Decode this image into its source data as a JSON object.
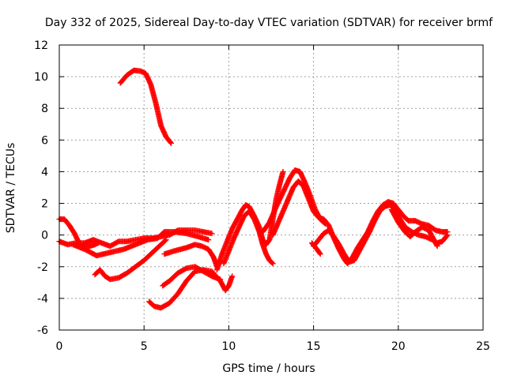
{
  "chart_data": {
    "type": "scatter",
    "title": "Day 332 of 2025, Sidereal Day-to-day VTEC variation (SDTVAR) for receiver brmf",
    "xlabel": "GPS time / hours",
    "ylabel": "SDTVAR / TECUs",
    "xlim": [
      0,
      25
    ],
    "ylim": [
      -6,
      12
    ],
    "xticks": [
      0,
      5,
      10,
      15,
      20,
      25
    ],
    "yticks": [
      -6,
      -4,
      -2,
      0,
      2,
      4,
      6,
      8,
      10,
      12
    ],
    "grid": true,
    "marker": "plus",
    "series_color": "#ff0000",
    "series": [
      {
        "name": "track-1",
        "points": [
          [
            3.6,
            9.6
          ],
          [
            4.0,
            10.1
          ],
          [
            4.4,
            10.4
          ],
          [
            4.8,
            10.35
          ],
          [
            5.1,
            10.2
          ],
          [
            5.4,
            9.5
          ],
          [
            5.7,
            8.3
          ],
          [
            6.0,
            6.9
          ],
          [
            6.3,
            6.2
          ],
          [
            6.6,
            5.8
          ]
        ]
      },
      {
        "name": "track-2",
        "points": [
          [
            0.0,
            1.0
          ],
          [
            0.3,
            1.0
          ],
          [
            0.6,
            0.6
          ],
          [
            0.9,
            0.1
          ],
          [
            1.2,
            -0.6
          ],
          [
            1.5,
            -0.7
          ],
          [
            1.8,
            -0.7
          ],
          [
            2.1,
            -0.6
          ],
          [
            2.3,
            -0.5
          ]
        ]
      },
      {
        "name": "track-3",
        "points": [
          [
            0.0,
            -0.4
          ],
          [
            0.5,
            -0.6
          ],
          [
            1.0,
            -0.5
          ],
          [
            1.5,
            -0.5
          ],
          [
            2.0,
            -0.3
          ],
          [
            2.5,
            -0.5
          ],
          [
            3.0,
            -0.7
          ],
          [
            3.5,
            -0.4
          ],
          [
            4.0,
            -0.4
          ],
          [
            4.5,
            -0.3
          ],
          [
            5.0,
            -0.2
          ],
          [
            5.5,
            -0.2
          ],
          [
            6.0,
            -0.1
          ],
          [
            6.5,
            0.0
          ],
          [
            7.0,
            0.3
          ],
          [
            7.5,
            0.3
          ],
          [
            8.0,
            0.3
          ],
          [
            8.5,
            0.2
          ],
          [
            9.0,
            0.1
          ]
        ]
      },
      {
        "name": "track-4",
        "points": [
          [
            0.8,
            -0.6
          ],
          [
            1.5,
            -0.9
          ],
          [
            2.2,
            -1.3
          ],
          [
            3.0,
            -1.1
          ],
          [
            3.8,
            -0.9
          ],
          [
            4.5,
            -0.6
          ],
          [
            5.2,
            -0.3
          ],
          [
            5.8,
            -0.2
          ],
          [
            6.2,
            0.2
          ],
          [
            6.8,
            0.2
          ],
          [
            7.5,
            0.1
          ],
          [
            8.2,
            -0.1
          ],
          [
            8.8,
            -0.3
          ]
        ]
      },
      {
        "name": "track-5",
        "points": [
          [
            2.1,
            -2.5
          ],
          [
            2.4,
            -2.2
          ],
          [
            2.7,
            -2.6
          ],
          [
            3.0,
            -2.8
          ],
          [
            3.5,
            -2.7
          ],
          [
            4.0,
            -2.4
          ],
          [
            4.5,
            -2.0
          ],
          [
            5.0,
            -1.6
          ],
          [
            5.5,
            -1.1
          ],
          [
            6.0,
            -0.6
          ],
          [
            6.3,
            -0.3
          ]
        ]
      },
      {
        "name": "track-6",
        "points": [
          [
            5.3,
            -4.2
          ],
          [
            5.6,
            -4.5
          ],
          [
            6.0,
            -4.6
          ],
          [
            6.5,
            -4.3
          ],
          [
            7.0,
            -3.7
          ],
          [
            7.5,
            -2.9
          ],
          [
            8.0,
            -2.3
          ],
          [
            8.5,
            -2.2
          ],
          [
            9.0,
            -2.3
          ],
          [
            9.5,
            -2.9
          ],
          [
            9.8,
            -3.5
          ],
          [
            10.0,
            -3.2
          ],
          [
            10.2,
            -2.6
          ]
        ]
      },
      {
        "name": "track-7",
        "points": [
          [
            6.1,
            -3.2
          ],
          [
            6.5,
            -2.9
          ],
          [
            7.0,
            -2.4
          ],
          [
            7.5,
            -2.1
          ],
          [
            8.0,
            -2.0
          ],
          [
            8.5,
            -2.3
          ],
          [
            9.0,
            -2.6
          ],
          [
            9.5,
            -2.8
          ]
        ]
      },
      {
        "name": "track-8",
        "points": [
          [
            6.2,
            -1.2
          ],
          [
            6.8,
            -1.0
          ],
          [
            7.5,
            -0.8
          ],
          [
            8.0,
            -0.6
          ],
          [
            8.4,
            -0.7
          ],
          [
            8.8,
            -0.9
          ],
          [
            9.1,
            -1.4
          ],
          [
            9.3,
            -2.0
          ],
          [
            9.5,
            -1.6
          ]
        ]
      },
      {
        "name": "track-9",
        "points": [
          [
            9.3,
            -2.2
          ],
          [
            9.6,
            -1.2
          ],
          [
            9.9,
            -0.4
          ],
          [
            10.2,
            0.4
          ],
          [
            10.5,
            1.0
          ],
          [
            10.8,
            1.6
          ],
          [
            11.0,
            1.9
          ],
          [
            11.2,
            1.8
          ],
          [
            11.5,
            1.2
          ],
          [
            11.8,
            0.5
          ],
          [
            12.0,
            -0.3
          ],
          [
            12.2,
            -0.6
          ],
          [
            12.4,
            -0.3
          ],
          [
            12.6,
            1.0
          ],
          [
            12.8,
            2.3
          ],
          [
            13.0,
            3.2
          ],
          [
            13.2,
            4.0
          ]
        ]
      },
      {
        "name": "track-10",
        "points": [
          [
            9.7,
            -1.8
          ],
          [
            10.0,
            -1.0
          ],
          [
            10.3,
            -0.2
          ],
          [
            10.6,
            0.5
          ],
          [
            10.9,
            1.2
          ],
          [
            11.2,
            1.5
          ],
          [
            11.5,
            1.0
          ],
          [
            11.8,
            0.2
          ],
          [
            12.0,
            -0.6
          ],
          [
            12.2,
            -1.2
          ],
          [
            12.4,
            -1.6
          ],
          [
            12.6,
            -1.8
          ]
        ]
      },
      {
        "name": "track-11",
        "points": [
          [
            12.0,
            0.2
          ],
          [
            12.4,
            0.8
          ],
          [
            12.8,
            1.8
          ],
          [
            13.2,
            2.7
          ],
          [
            13.6,
            3.6
          ],
          [
            13.9,
            4.1
          ],
          [
            14.2,
            4.0
          ],
          [
            14.5,
            3.3
          ],
          [
            14.8,
            2.5
          ],
          [
            15.1,
            1.6
          ],
          [
            15.4,
            1.0
          ],
          [
            15.7,
            0.7
          ]
        ]
      },
      {
        "name": "track-12",
        "points": [
          [
            12.6,
            0.0
          ],
          [
            13.0,
            1.0
          ],
          [
            13.4,
            2.0
          ],
          [
            13.8,
            3.0
          ],
          [
            14.1,
            3.4
          ],
          [
            14.4,
            3.1
          ],
          [
            14.7,
            2.3
          ],
          [
            15.0,
            1.5
          ],
          [
            15.3,
            1.1
          ],
          [
            15.6,
            1.0
          ],
          [
            15.9,
            0.6
          ],
          [
            16.2,
            -0.2
          ],
          [
            16.5,
            -0.9
          ],
          [
            16.8,
            -1.5
          ],
          [
            17.0,
            -1.8
          ],
          [
            17.3,
            -1.4
          ],
          [
            17.6,
            -0.8
          ],
          [
            17.9,
            -0.3
          ],
          [
            18.2,
            0.2
          ],
          [
            18.5,
            0.9
          ],
          [
            18.8,
            1.5
          ],
          [
            19.1,
            1.9
          ],
          [
            19.4,
            2.1
          ],
          [
            19.7,
            2.0
          ],
          [
            20.0,
            1.6
          ],
          [
            20.3,
            1.2
          ],
          [
            20.6,
            0.9
          ],
          [
            21.0,
            0.9
          ],
          [
            21.4,
            0.7
          ],
          [
            21.8,
            0.6
          ],
          [
            22.2,
            0.3
          ],
          [
            22.6,
            0.2
          ],
          [
            22.9,
            0.2
          ]
        ]
      },
      {
        "name": "track-13",
        "points": [
          [
            15.0,
            -0.7
          ],
          [
            15.3,
            -0.3
          ],
          [
            15.6,
            0.1
          ],
          [
            15.9,
            0.3
          ],
          [
            16.2,
            -0.1
          ],
          [
            16.5,
            -0.6
          ],
          [
            16.8,
            -1.2
          ],
          [
            17.1,
            -1.7
          ],
          [
            17.4,
            -1.6
          ],
          [
            17.7,
            -1.0
          ],
          [
            18.0,
            -0.4
          ],
          [
            18.3,
            0.2
          ],
          [
            18.6,
            0.9
          ],
          [
            18.9,
            1.5
          ],
          [
            19.2,
            1.8
          ],
          [
            19.5,
            1.9
          ],
          [
            19.8,
            1.6
          ],
          [
            20.1,
            1.0
          ],
          [
            20.4,
            0.5
          ],
          [
            20.8,
            0.2
          ],
          [
            21.2,
            0.0
          ],
          [
            21.6,
            -0.1
          ],
          [
            22.0,
            -0.3
          ],
          [
            22.3,
            -0.5
          ],
          [
            22.6,
            -0.4
          ],
          [
            22.9,
            0.0
          ]
        ]
      },
      {
        "name": "track-14",
        "points": [
          [
            14.9,
            -0.5
          ],
          [
            15.2,
            -0.9
          ],
          [
            15.4,
            -1.2
          ]
        ]
      },
      {
        "name": "track-15",
        "points": [
          [
            19.6,
            1.6
          ],
          [
            20.0,
            0.8
          ],
          [
            20.4,
            0.2
          ],
          [
            20.7,
            -0.1
          ],
          [
            21.0,
            0.2
          ],
          [
            21.4,
            0.5
          ],
          [
            21.8,
            0.3
          ],
          [
            22.1,
            -0.3
          ],
          [
            22.3,
            -0.7
          ]
        ]
      }
    ]
  }
}
